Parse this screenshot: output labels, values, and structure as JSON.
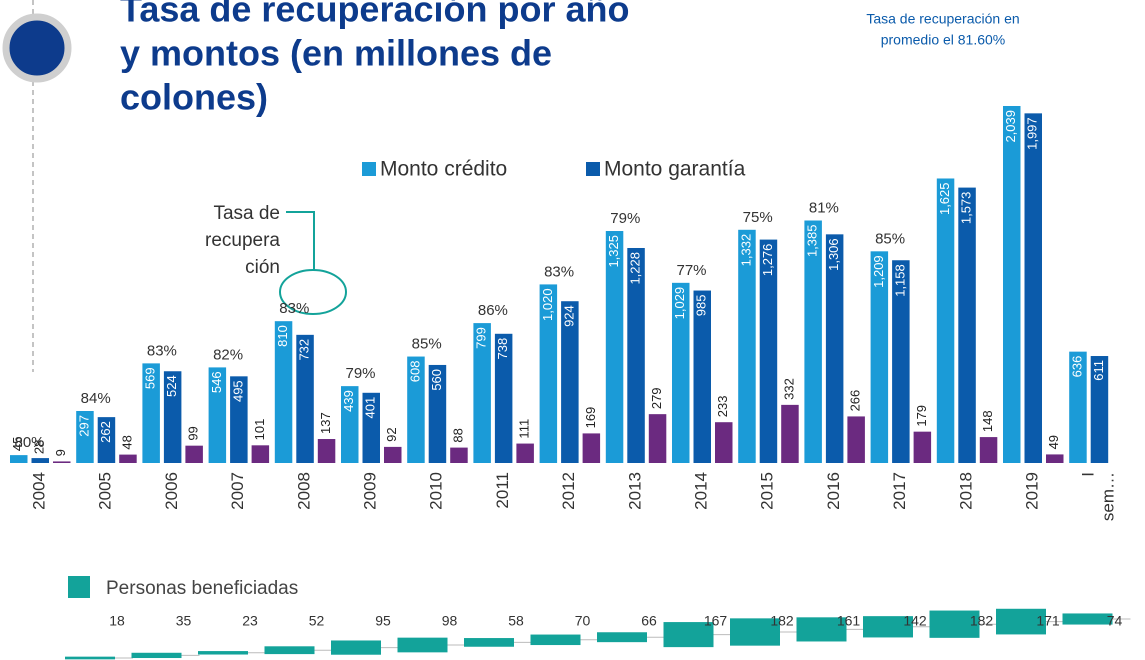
{
  "chart_data": {
    "type": "bar",
    "title_lines": [
      "Tasa de recuperación  por año",
      "y montos (en millones de",
      "colones)"
    ],
    "annotation_lines": [
      "Tasa de recuperación en",
      "promedio el 81.60%"
    ],
    "callout_lines": [
      "Tasa de",
      "recupera",
      "ción"
    ],
    "categories": [
      "2004",
      "2005",
      "2006",
      "2007",
      "2008",
      "2009",
      "2010",
      "2011",
      "2012",
      "2013",
      "2014",
      "2015",
      "2016",
      "2017",
      "2018",
      "2019",
      [
        "I",
        "sem…"
      ]
    ],
    "series": [
      {
        "name": "Monto crédito",
        "color": "#1b9bd7",
        "values": [
          45,
          297,
          569,
          546,
          810,
          439,
          608,
          799,
          1020,
          1325,
          1029,
          1332,
          1385,
          1209,
          1625,
          2039,
          636
        ],
        "value_labels": [
          "45",
          "297",
          "569",
          "546",
          "810",
          "439",
          "608",
          "799",
          "1,020",
          "1,325",
          "1,029",
          "1,332",
          "1,385",
          "1,209",
          "1,625",
          "2,039",
          "636"
        ]
      },
      {
        "name": "Monto garantía",
        "color": "#0b5bab",
        "values": [
          28,
          262,
          524,
          495,
          732,
          401,
          560,
          738,
          924,
          1228,
          985,
          1276,
          1306,
          1158,
          1573,
          1997,
          611
        ],
        "value_labels": [
          "28",
          "262",
          "524",
          "495",
          "732",
          "401",
          "560",
          "738",
          "924",
          "1,228",
          "985",
          "1,276",
          "1,306",
          "1,158",
          "1,573",
          "1,997",
          "611"
        ]
      },
      {
        "color": "#6b2a80",
        "values": [
          9,
          48,
          99,
          101,
          137,
          92,
          88,
          111,
          169,
          279,
          233,
          332,
          266,
          179,
          148,
          49,
          null
        ]
      }
    ],
    "recovery_rate": {
      "values": [
        80,
        84,
        83,
        82,
        83,
        79,
        85,
        86,
        83,
        79,
        77,
        75,
        81,
        85,
        null,
        null,
        null
      ],
      "value_labels": [
        "80%",
        "84%",
        "83%",
        "82%",
        "83%",
        "79%",
        "85%",
        "86%",
        "83%",
        "79%",
        "77%",
        "75%",
        "81%",
        "85%",
        null,
        null,
        null
      ]
    },
    "beneficiaries": {
      "name": "Personas beneficiadas",
      "color": "#13a39a",
      "values": [
        18,
        35,
        23,
        52,
        95,
        98,
        58,
        70,
        66,
        167,
        182,
        161,
        142,
        182,
        171,
        74
      ]
    }
  }
}
